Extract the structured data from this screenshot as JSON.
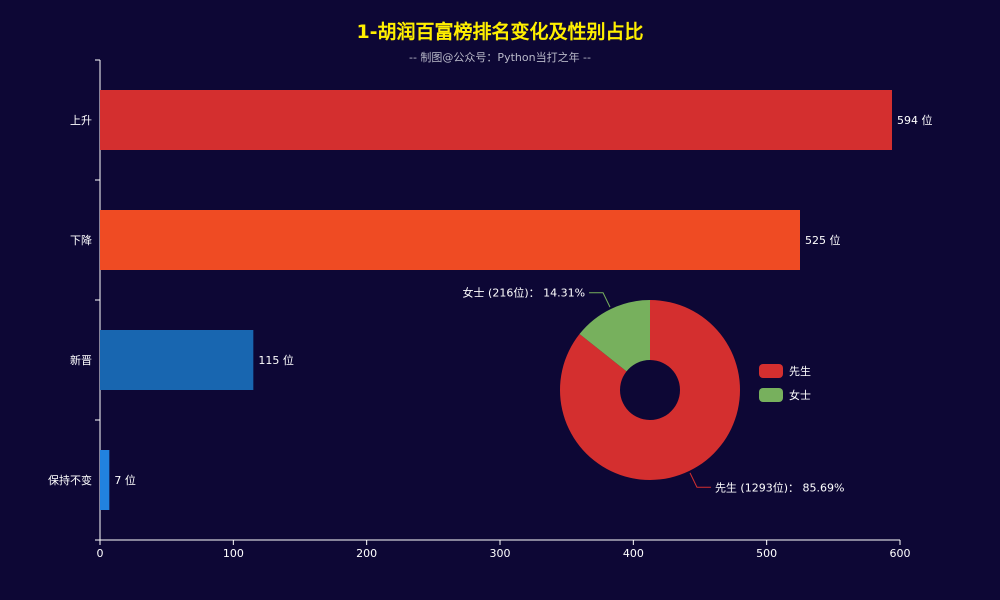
{
  "header": {
    "title": "1-胡润百富榜排名变化及性别占比",
    "subtitle": "-- 制图@公众号：Python当打之年 --"
  },
  "chart_data": [
    {
      "type": "bar",
      "orientation": "horizontal",
      "categories": [
        "上升",
        "下降",
        "新晋",
        "保持不变"
      ],
      "values": [
        594,
        525,
        115,
        7
      ],
      "data_labels": [
        "594 位",
        "525 位",
        "115 位",
        "7 位"
      ],
      "colors": [
        "#d42f2f",
        "#ef4b23",
        "#1866b0",
        "#2182e0"
      ],
      "xlim": [
        0,
        600
      ],
      "xticks": [
        0,
        100,
        200,
        300,
        400,
        500,
        600
      ],
      "grid": false
    },
    {
      "type": "pie",
      "style": "donut",
      "labels": [
        "先生",
        "女士"
      ],
      "values": [
        1293,
        216
      ],
      "percents": [
        85.69,
        14.31
      ],
      "slice_labels": [
        "先生 (1293位)：  85.69%",
        "女士 (216位)：  14.31%"
      ],
      "colors": [
        "#d42f2f",
        "#77b05d"
      ],
      "legend": {
        "placement": "right",
        "entries": [
          "先生",
          "女士"
        ]
      }
    }
  ]
}
